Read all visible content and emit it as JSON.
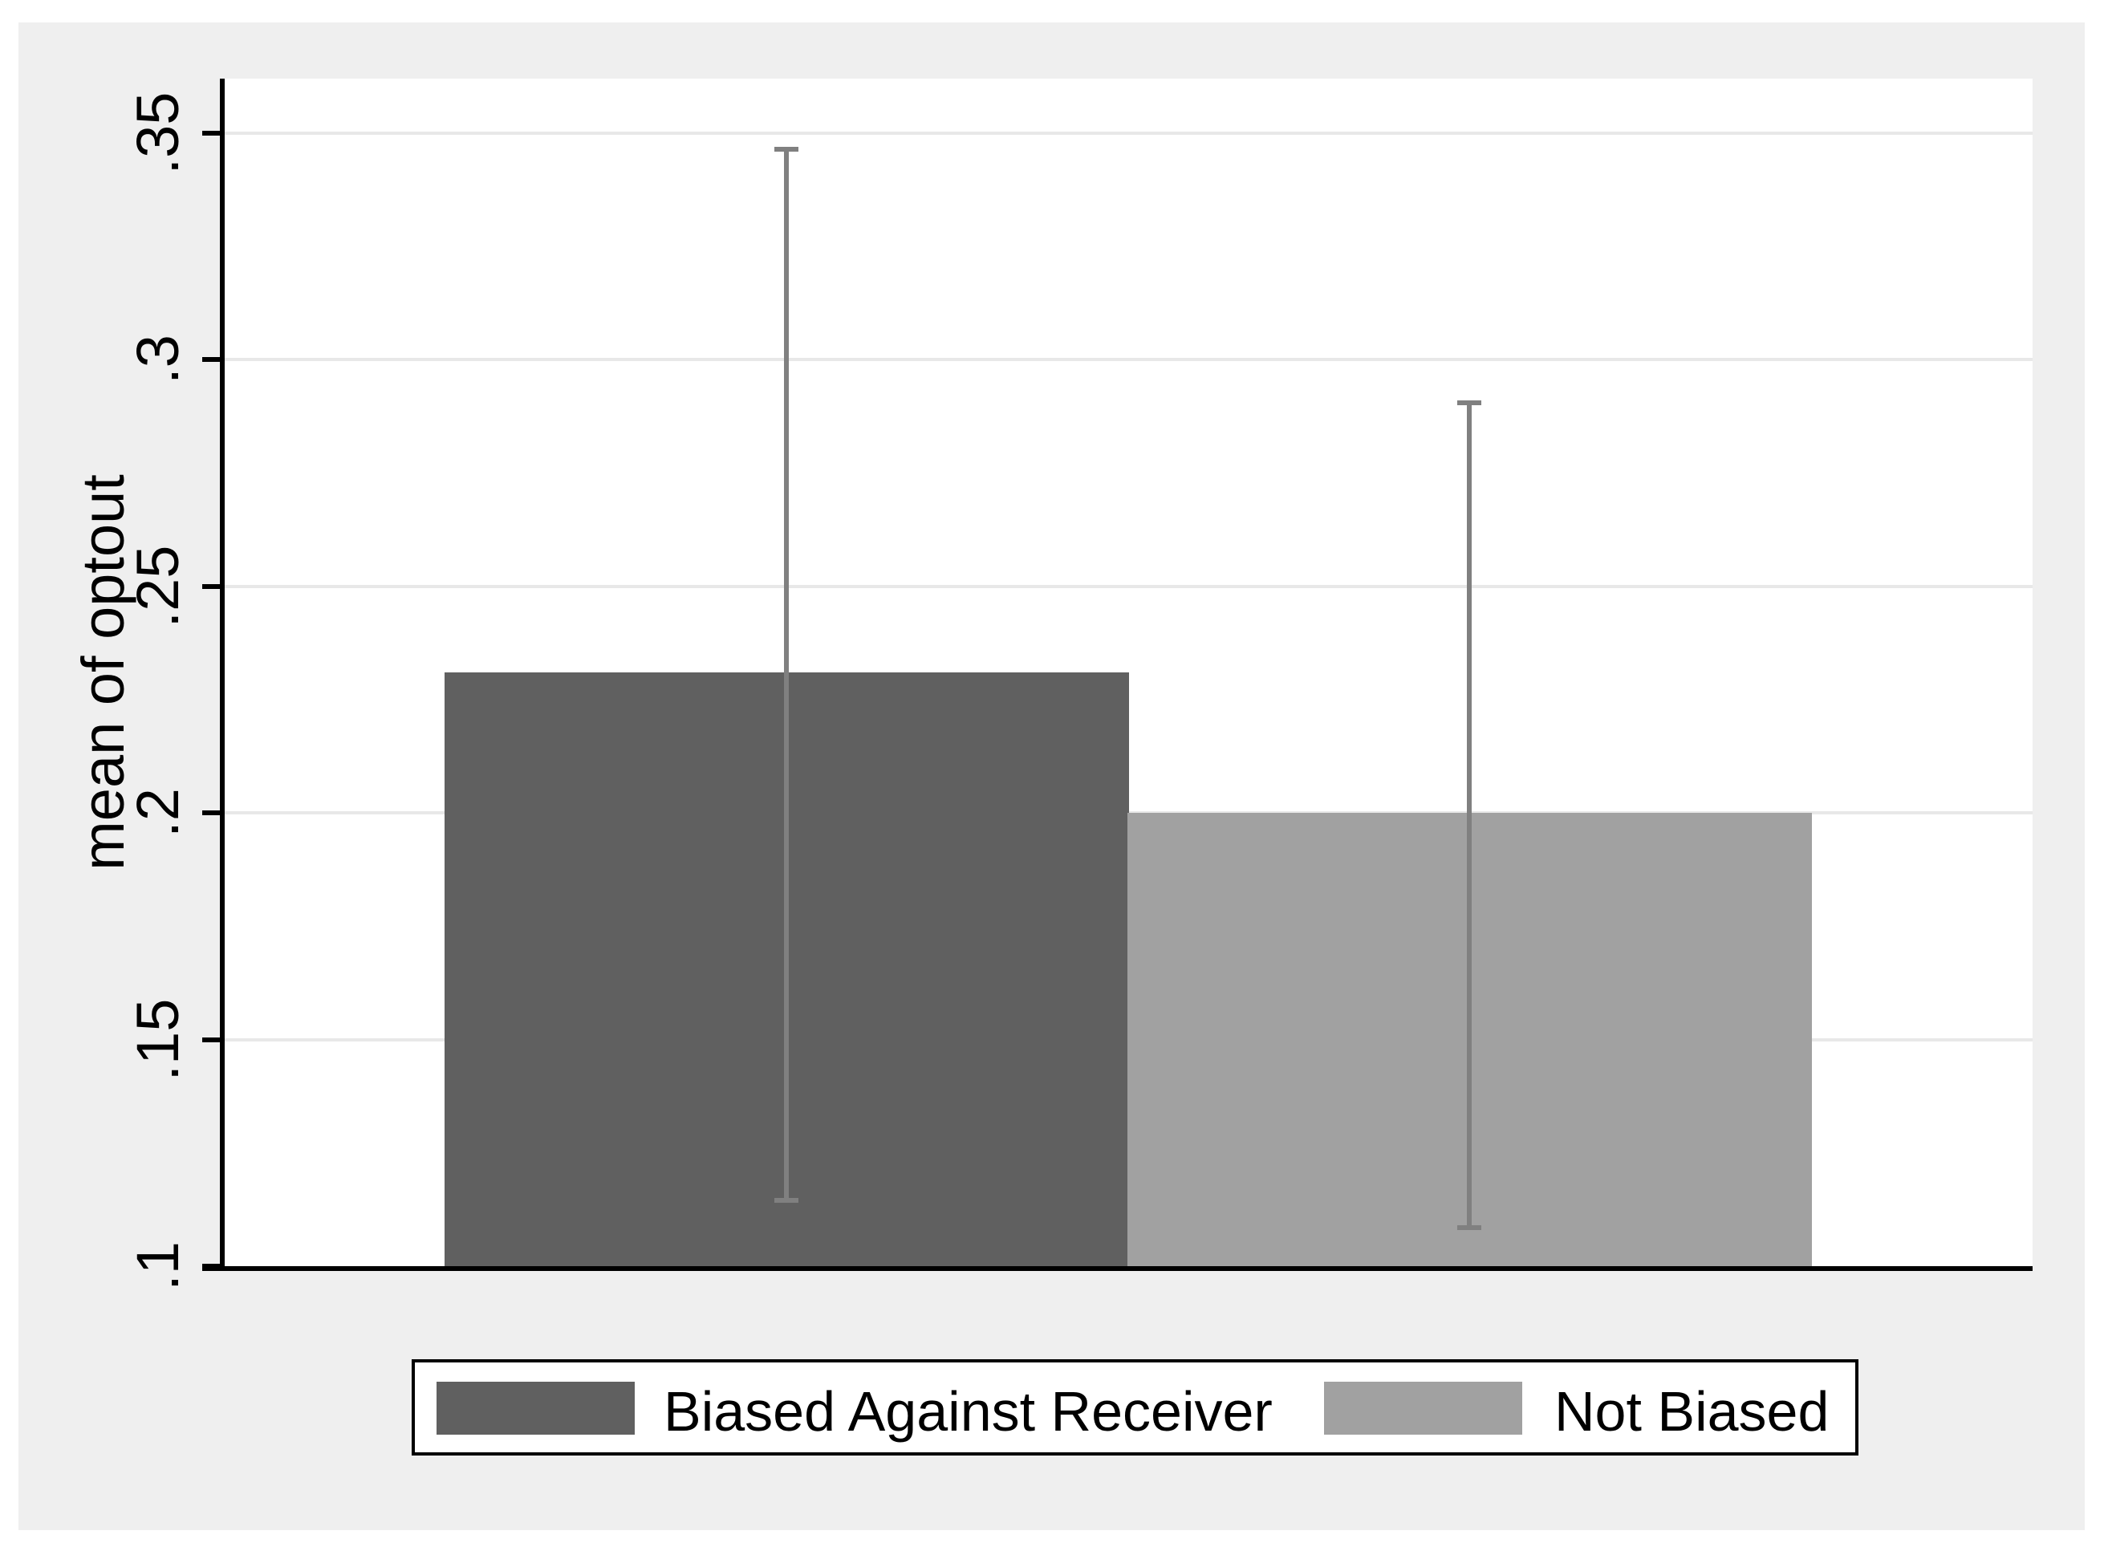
{
  "chart_data": {
    "type": "bar",
    "ylabel": "mean of optout",
    "ylim": [
      0.1,
      0.35
    ],
    "yticks": [
      {
        "value": 0.1,
        "label": ".1"
      },
      {
        "value": 0.15,
        "label": ".15"
      },
      {
        "value": 0.2,
        "label": ".2"
      },
      {
        "value": 0.25,
        "label": ".25"
      },
      {
        "value": 0.3,
        "label": ".3"
      },
      {
        "value": 0.35,
        "label": ".35"
      }
    ],
    "grid": true,
    "legend_position": "bottom",
    "categories": [
      "Biased Against Receiver",
      "Not Biased"
    ],
    "values": [
      0.231,
      0.2
    ],
    "error_bars": [
      {
        "low": 0.114,
        "high": 0.347
      },
      {
        "low": 0.108,
        "high": 0.291
      }
    ],
    "bar_colors": [
      "#606060",
      "#a1a1a1"
    ],
    "error_color": "#808080"
  },
  "colors": {
    "canvas_bg": "#efefef",
    "plot_bg": "#ffffff",
    "gridline": "#e8e8e8",
    "axis": "#000000",
    "tick_text": "#000000",
    "legend_bg": "#ffffff",
    "legend_border": "#000000"
  }
}
